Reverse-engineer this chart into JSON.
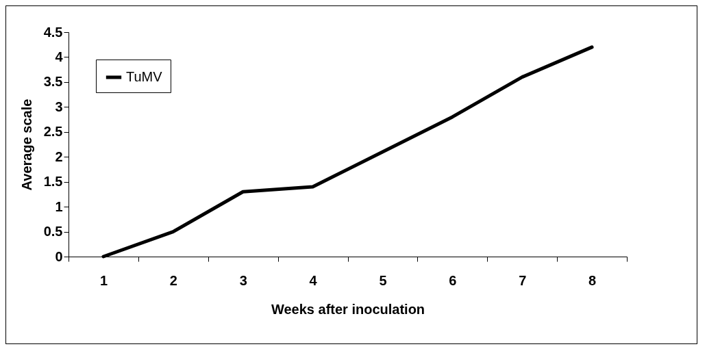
{
  "chart_data": {
    "type": "line",
    "xlabel": "Weeks after inoculation",
    "ylabel": "Average scale",
    "categories": [
      "1",
      "2",
      "3",
      "4",
      "5",
      "6",
      "7",
      "8"
    ],
    "series": [
      {
        "name": "TuMV",
        "color": "#000000",
        "values": [
          0,
          0.5,
          1.3,
          1.4,
          2.1,
          2.8,
          3.6,
          4.2
        ]
      }
    ],
    "ylim": [
      0,
      4.5
    ],
    "yticks": [
      0,
      0.5,
      1,
      1.5,
      2,
      2.5,
      3,
      3.5,
      4,
      4.5
    ],
    "grid": false,
    "legend": "top left",
    "marker": "none",
    "line_style": "solid"
  }
}
